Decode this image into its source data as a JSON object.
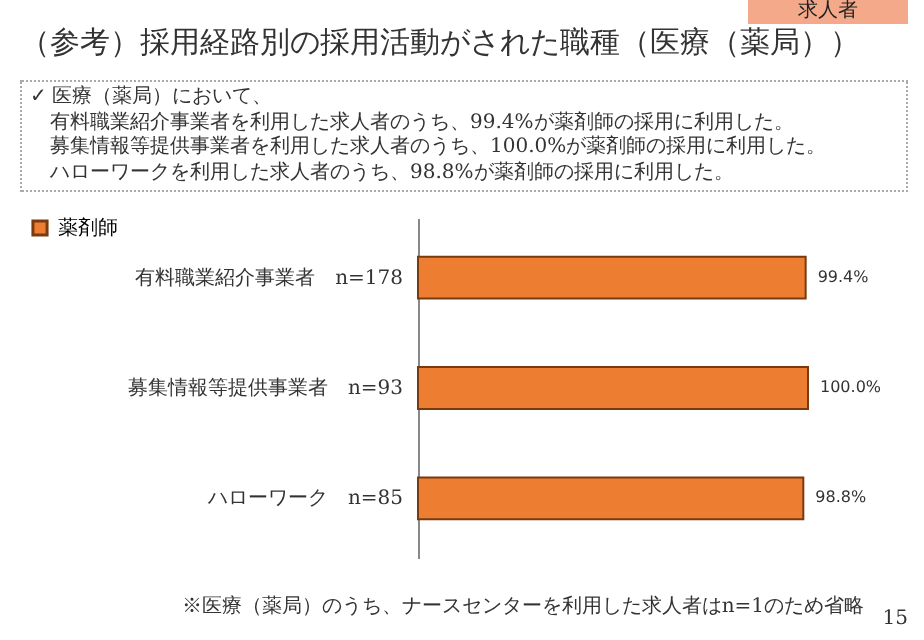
{
  "chart_data": {
    "type": "bar",
    "orientation": "horizontal",
    "title": "（参考）採用経路別の採用活動がされた職種（医療（薬局））",
    "categories": [
      "有料職業紹介事業者　n=178",
      "募集情報等提供事業者　n=93",
      "ハローワーク　n=85"
    ],
    "series": [
      {
        "name": "薬剤師",
        "color": "#ed7d31",
        "values": [
          99.4,
          100.0,
          98.8
        ],
        "value_labels": [
          "99.4%",
          "100.0%",
          "98.8%"
        ]
      }
    ],
    "legend": "left",
    "tick_labels": "y",
    "annotations": [
      "求人者",
      "✓ 医療（薬局）において、",
      "有料職業紹介事業者を利用した求人者のうち、99.4%が薬剤師の採用に利用した。",
      "募集情報等提供事業者を利用した求人者のうち、100.0%が薬剤師の採用に利用した。",
      "ハローワークを利用した求人者のうち、98.8%が薬剤師の採用に利用した。",
      "※医療（薬局）のうち、ナースセンターを利用した求人者はn=1のため省略",
      "15"
    ]
  }
}
